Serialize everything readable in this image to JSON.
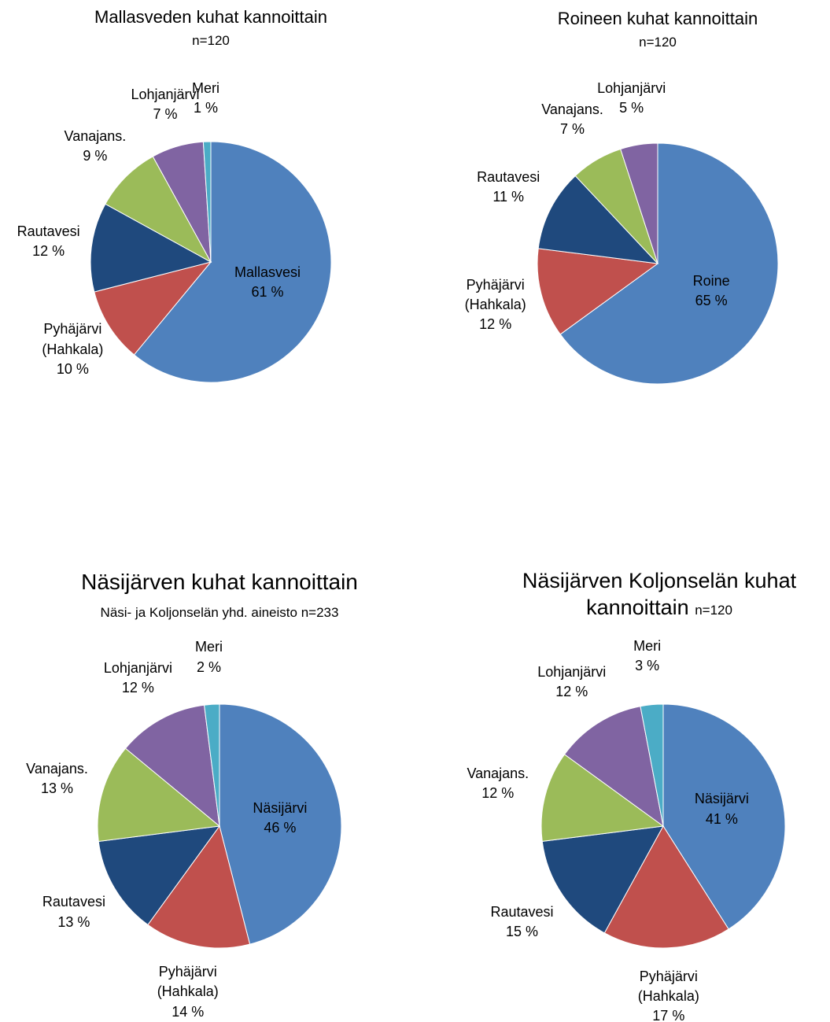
{
  "chart_data": [
    {
      "type": "pie",
      "title": "Mallasveden kuhat kannoittain",
      "subtitle": "n=120",
      "categories": [
        "Mallasvesi",
        "Pyhäjärvi (Hahkala)",
        "Rautavesi",
        "Vanajans.",
        "Lohjanjärvi",
        "Meri"
      ],
      "values": [
        61,
        10,
        12,
        9,
        7,
        1
      ],
      "value_labels": [
        "61 %",
        "10 %",
        "12 %",
        "9 %",
        "7 %",
        "1 %"
      ],
      "colors": [
        "#4f81bd",
        "#c0504d",
        "#1f497d",
        "#9bbb59",
        "#8064a2",
        "#4bacc6"
      ]
    },
    {
      "type": "pie",
      "title": "Roineen kuhat kannoittain",
      "subtitle": "n=120",
      "categories": [
        "Roine",
        "Pyhäjärvi (Hahkala)",
        "Rautavesi",
        "Vanajans.",
        "Lohjanjärvi"
      ],
      "values": [
        65,
        12,
        11,
        7,
        5
      ],
      "value_labels": [
        "65 %",
        "12 %",
        "11 %",
        "7 %",
        "5 %"
      ],
      "colors": [
        "#4f81bd",
        "#c0504d",
        "#1f497d",
        "#9bbb59",
        "#8064a2"
      ]
    },
    {
      "type": "pie",
      "title": "Näsijärven kuhat kannoittain",
      "subtitle": "Näsi- ja Koljonselän yhd. aineisto n=233",
      "categories": [
        "Näsijärvi",
        "Pyhäjärvi (Hahkala)",
        "Rautavesi",
        "Vanajans.",
        "Lohjanjärvi",
        "Meri"
      ],
      "values": [
        46,
        14,
        13,
        13,
        12,
        2
      ],
      "value_labels": [
        "46 %",
        "14 %",
        "13 %",
        "13 %",
        "12 %",
        "2 %"
      ],
      "colors": [
        "#4f81bd",
        "#c0504d",
        "#1f497d",
        "#9bbb59",
        "#8064a2",
        "#4bacc6"
      ]
    },
    {
      "type": "pie",
      "title": "Näsijärven Koljonselän kuhat kannoittain",
      "subtitle": "n=120",
      "categories": [
        "Näsijärvi",
        "Pyhäjärvi (Hahkala)",
        "Rautavesi",
        "Vanajans.",
        "Lohjanjärvi",
        "Meri"
      ],
      "values": [
        41,
        17,
        15,
        12,
        12,
        3
      ],
      "value_labels": [
        "41 %",
        "17 %",
        "15 %",
        "12 %",
        "12 %",
        "3 %"
      ],
      "colors": [
        "#4f81bd",
        "#c0504d",
        "#1f497d",
        "#9bbb59",
        "#8064a2",
        "#4bacc6"
      ]
    }
  ]
}
